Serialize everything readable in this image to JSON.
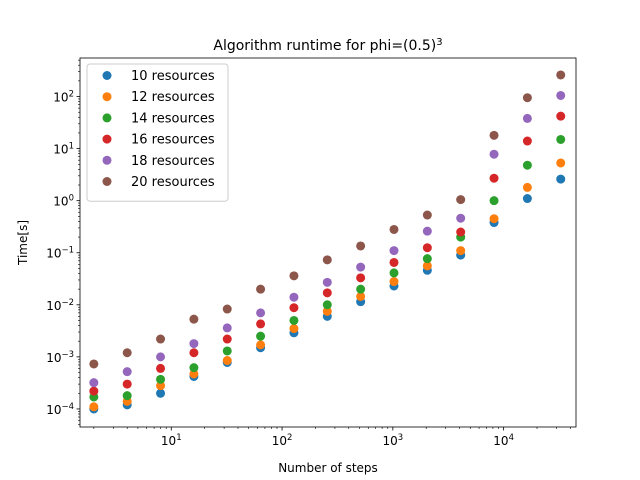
{
  "chart_data": {
    "type": "scatter",
    "title_main": "Algorithm runtime for phi=(0.5)",
    "title_exponent": "3",
    "xlabel": "Number of steps",
    "ylabel": "Time[s]",
    "x_scale": "log",
    "y_scale": "log",
    "xlim": [
      1.5,
      45000
    ],
    "ylim": [
      4.5e-05,
      550
    ],
    "x_ticks": [
      {
        "value": 10,
        "base": "10",
        "exp": "1"
      },
      {
        "value": 100,
        "base": "10",
        "exp": "2"
      },
      {
        "value": 1000,
        "base": "10",
        "exp": "3"
      },
      {
        "value": 10000,
        "base": "10",
        "exp": "4"
      }
    ],
    "y_ticks": [
      {
        "value": 0.0001,
        "base": "10",
        "exp": "−4"
      },
      {
        "value": 0.001,
        "base": "10",
        "exp": "−3"
      },
      {
        "value": 0.01,
        "base": "10",
        "exp": "−2"
      },
      {
        "value": 0.1,
        "base": "10",
        "exp": "−1"
      },
      {
        "value": 1,
        "base": "10",
        "exp": "0"
      },
      {
        "value": 10,
        "base": "10",
        "exp": "1"
      },
      {
        "value": 100,
        "base": "10",
        "exp": "2"
      }
    ],
    "grid": false,
    "legend_position": "top-left",
    "x": [
      2,
      4,
      8,
      16,
      32,
      64,
      128,
      256,
      512,
      1024,
      2048,
      4096,
      8192,
      16384,
      32768
    ],
    "series": [
      {
        "name": "10 resources",
        "color": "#1f77b4",
        "values": [
          0.0001,
          0.00012,
          0.0002,
          0.00042,
          0.00078,
          0.0015,
          0.0029,
          0.006,
          0.0115,
          0.023,
          0.046,
          0.09,
          0.38,
          1.1,
          2.6
        ]
      },
      {
        "name": "12 resources",
        "color": "#ff7f0e",
        "values": [
          0.00011,
          0.00014,
          0.00028,
          0.00047,
          0.00085,
          0.0017,
          0.0035,
          0.0075,
          0.0145,
          0.028,
          0.056,
          0.11,
          0.45,
          1.8,
          5.3
        ]
      },
      {
        "name": "14 resources",
        "color": "#2ca02c",
        "values": [
          0.00017,
          0.00018,
          0.00037,
          0.00062,
          0.0013,
          0.0025,
          0.005,
          0.01,
          0.02,
          0.041,
          0.077,
          0.2,
          1.0,
          4.8,
          15
        ]
      },
      {
        "name": "16 resources",
        "color": "#d62728",
        "values": [
          0.00022,
          0.0003,
          0.0006,
          0.0012,
          0.0022,
          0.0043,
          0.0088,
          0.017,
          0.033,
          0.065,
          0.125,
          0.25,
          2.7,
          14,
          42
        ]
      },
      {
        "name": "18 resources",
        "color": "#9467bd",
        "values": [
          0.00032,
          0.00052,
          0.001,
          0.0018,
          0.0036,
          0.007,
          0.014,
          0.027,
          0.053,
          0.11,
          0.26,
          0.46,
          7.8,
          38,
          105
        ]
      },
      {
        "name": "20 resources",
        "color": "#8c564b",
        "values": [
          0.00073,
          0.0012,
          0.0022,
          0.0053,
          0.0083,
          0.02,
          0.036,
          0.073,
          0.135,
          0.28,
          0.53,
          1.05,
          18,
          95,
          260
        ]
      }
    ]
  }
}
